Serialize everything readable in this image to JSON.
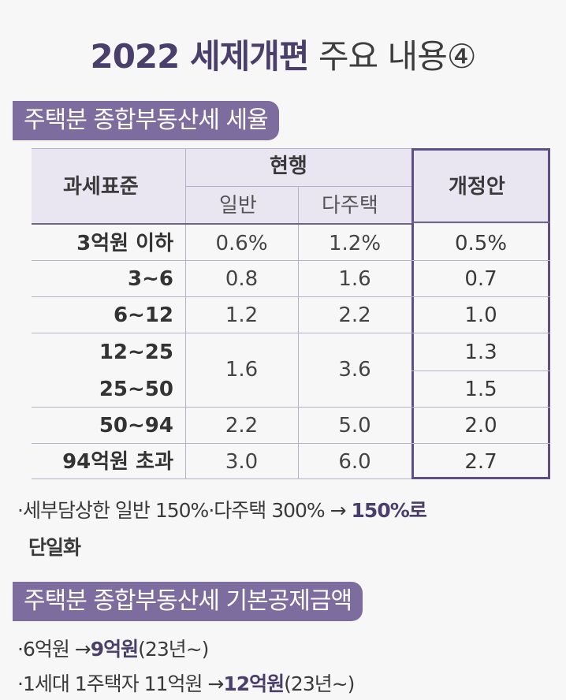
{
  "title": {
    "bold": "2022 세제개편",
    "light": "주요 내용④"
  },
  "section1": {
    "label": "주택분 종합부동산세 세율"
  },
  "table": {
    "header_standard": "과세표준",
    "header_current": "현행",
    "header_general": "일반",
    "header_multi": "다주택",
    "header_revision": "개정안",
    "rows": [
      {
        "standard": "3억원 이하",
        "general": "0.6%",
        "multi": "1.2%",
        "revision": "0.5%"
      },
      {
        "standard": "3~6",
        "general": "0.8",
        "multi": "1.6",
        "revision": "0.7"
      },
      {
        "standard": "6~12",
        "general": "1.2",
        "multi": "2.2",
        "revision": "1.0"
      },
      {
        "standard": "12~25",
        "general": "1.6",
        "multi": "3.6",
        "revision": "1.3"
      },
      {
        "standard": "25~50",
        "general": "",
        "multi": "",
        "revision": "1.5"
      },
      {
        "standard": "50~94",
        "general": "2.2",
        "multi": "5.0",
        "revision": "2.0"
      },
      {
        "standard": "94억원 초과",
        "general": "3.0",
        "multi": "6.0",
        "revision": "2.7"
      }
    ]
  },
  "note1": {
    "prefix": "·세부담상한 일반 150%·다주택 300% →",
    "highlight": "150%로",
    "line2": "단일화"
  },
  "section2": {
    "label": "주택분 종합부동산세 기본공제금액"
  },
  "note2": {
    "prefix": "·6억원 →",
    "highlight": "9억원",
    "suffix": "(23년~)"
  },
  "note3": {
    "prefix": "·1세대 1주택자 11억원 →",
    "highlight": "12억원",
    "suffix": "(23년~)"
  }
}
